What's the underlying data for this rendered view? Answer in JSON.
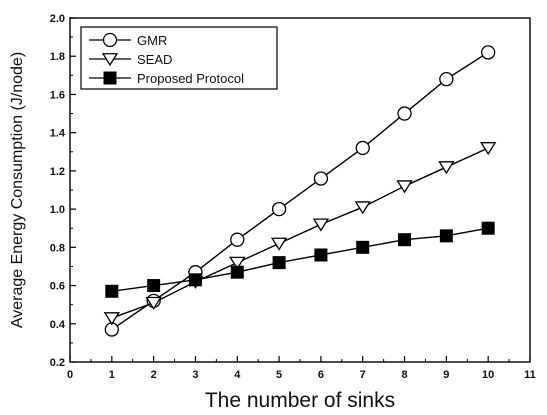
{
  "chart_data": {
    "type": "line",
    "title": "",
    "xlabel": "The number of sinks",
    "ylabel": "Average Energy Consumption (J/node)",
    "xlim": [
      0,
      11
    ],
    "ylim": [
      0.2,
      2.0
    ],
    "x_ticks": [
      0,
      1,
      2,
      3,
      4,
      5,
      6,
      7,
      8,
      9,
      10,
      11
    ],
    "x_tick_labels": [
      "0",
      "1",
      "2",
      "3",
      "4",
      "5",
      "6",
      "7",
      "8",
      "9",
      "10",
      "11"
    ],
    "y_ticks": [
      0.2,
      0.4,
      0.6,
      0.8,
      1.0,
      1.2,
      1.4,
      1.6,
      1.8,
      2.0
    ],
    "y_tick_labels": [
      "0.2",
      "0.4",
      "0.6",
      "0.8",
      "1.0",
      "1.2",
      "1.4",
      "1.6",
      "1.8",
      "2.0"
    ],
    "grid": false,
    "legend_position": "top-left",
    "x": [
      1,
      2,
      3,
      4,
      5,
      6,
      7,
      8,
      9,
      10
    ],
    "series": [
      {
        "name": "GMR",
        "marker": "circle-open",
        "values": [
          0.37,
          0.52,
          0.67,
          0.84,
          1.0,
          1.16,
          1.32,
          1.5,
          1.68,
          1.82
        ]
      },
      {
        "name": "SEAD",
        "marker": "triangle-down-open",
        "values": [
          0.43,
          0.51,
          0.62,
          0.72,
          0.82,
          0.92,
          1.01,
          1.12,
          1.22,
          1.32
        ]
      },
      {
        "name": "Proposed Protocol",
        "marker": "square-filled",
        "values": [
          0.57,
          0.6,
          0.63,
          0.67,
          0.72,
          0.76,
          0.8,
          0.84,
          0.86,
          0.9
        ]
      }
    ]
  }
}
